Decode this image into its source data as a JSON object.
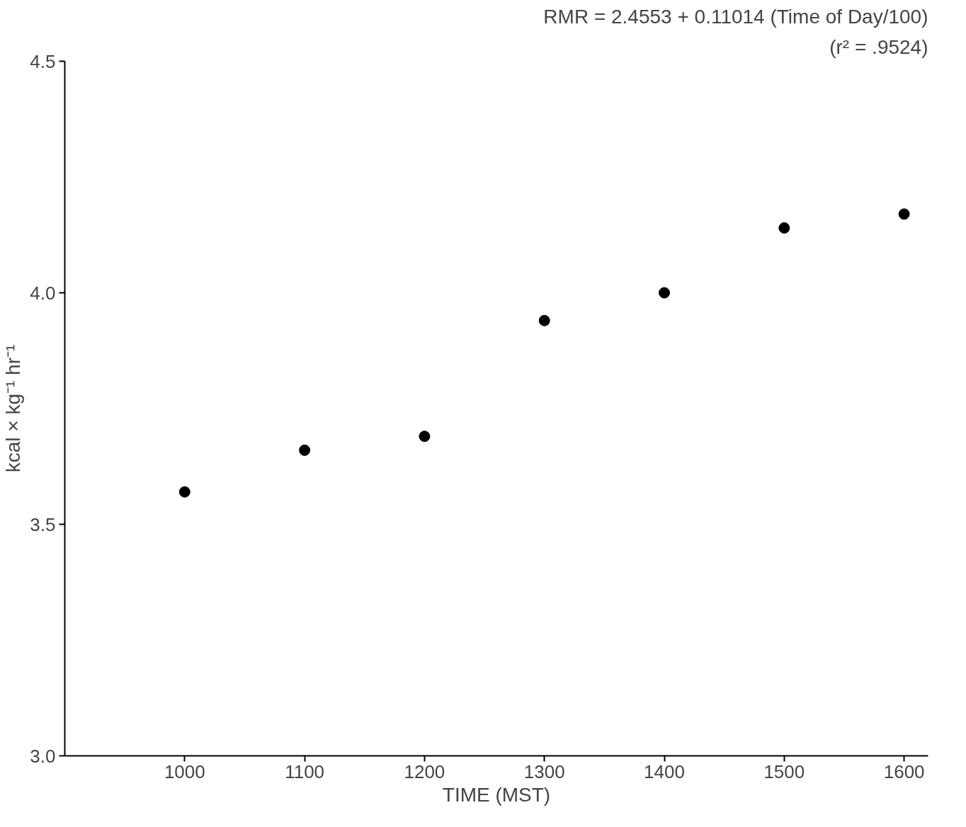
{
  "chart_data": {
    "type": "scatter",
    "xlabel": "TIME (MST)",
    "ylabel": "kcal × kg⁻¹ hr⁻¹",
    "annotations": [
      "RMR = 2.4553 + 0.11014 (Time of Day/100)",
      "(r² = .9524)"
    ],
    "x": [
      1000,
      1100,
      1200,
      1300,
      1400,
      1500,
      1600
    ],
    "series": [
      {
        "color": "#000000",
        "values": [
          3.57,
          3.66,
          3.69,
          3.94,
          4.0,
          4.14,
          4.17
        ]
      }
    ],
    "xlim": [
      900,
      1620
    ],
    "ylim": [
      3.0,
      4.5
    ],
    "xticks": [
      1000,
      1100,
      1200,
      1300,
      1400,
      1500,
      1600
    ],
    "yticks": [
      {
        "value": 3.0,
        "label": "3.0"
      },
      {
        "value": 3.5,
        "label": "3.5"
      },
      {
        "value": 4.0,
        "label": "4.0"
      },
      {
        "value": 4.5,
        "label": "4.5"
      }
    ],
    "grid": false,
    "marker": "circle"
  }
}
